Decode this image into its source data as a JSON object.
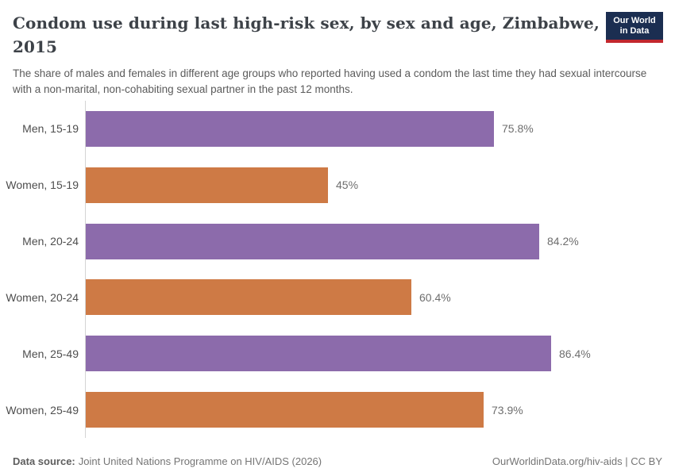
{
  "header": {
    "title_lines": [
      "Condom use during last high-risk sex, by sex and age, Zimbabwe,",
      "2015"
    ],
    "subtitle": "The share of males and females in different age groups who reported having used a condom the last time they had sexual intercourse with a non-marital, non-cohabiting sexual partner in the past 12 months."
  },
  "logo": {
    "line1": "Our World",
    "line2": "in Data",
    "bg_color": "#1B2E51",
    "accent_color": "#C2272E"
  },
  "chart_data": {
    "type": "bar",
    "orientation": "horizontal",
    "title": "Condom use during last high-risk sex, by sex and age, Zimbabwe, 2015",
    "categories": [
      "Men, 15-19",
      "Women, 15-19",
      "Men, 20-24",
      "Women, 20-24",
      "Men, 25-49",
      "Women, 25-49"
    ],
    "values": [
      75.8,
      45,
      84.2,
      60.4,
      86.4,
      73.9
    ],
    "value_labels": [
      "75.8%",
      "45%",
      "84.2%",
      "60.4%",
      "86.4%",
      "73.9%"
    ],
    "bar_colors": [
      "#8C6BAB",
      "#CE7A45",
      "#8C6BAB",
      "#CE7A45",
      "#8C6BAB",
      "#CE7A45"
    ],
    "series_colors": {
      "men": "#8C6BAB",
      "women": "#CE7A45"
    },
    "unit": "%",
    "xlim": [
      0,
      100
    ],
    "grid": false,
    "axis_color": "#d4d4d4"
  },
  "footer": {
    "source_label": "Data source:",
    "source_text": "Joint United Nations Programme on HIV/AIDS (2026)",
    "attribution": "OurWorldinData.org/hiv-aids | CC BY"
  }
}
